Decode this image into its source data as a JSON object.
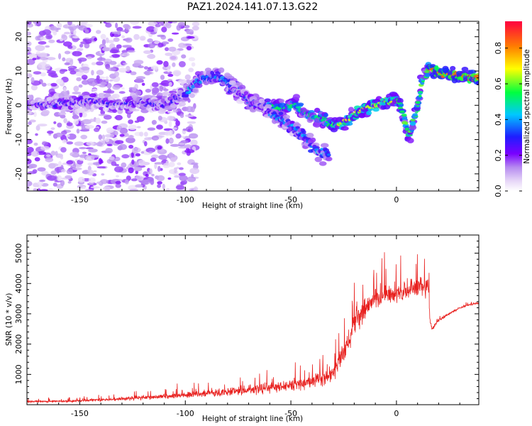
{
  "title": "PAZ1.2024.141.07.13.G22",
  "chart_data": [
    {
      "type": "heatmap",
      "xlabel": "Height of straight line (km)",
      "ylabel": "Frequency (Hz)",
      "xlim": [
        -175,
        39
      ],
      "ylim": [
        -25,
        24.5
      ],
      "xticks": [
        -150,
        -100,
        -50,
        0
      ],
      "yticks": [
        -20,
        -10,
        0,
        10,
        20
      ],
      "colorbar": {
        "label": "Normalized spectral amplitude",
        "range": [
          0,
          0.95
        ],
        "ticks": [
          0.0,
          0.2,
          0.4,
          0.6,
          0.8
        ],
        "colormap": [
          "#ffffff",
          "#e6d6f7",
          "#b68af0",
          "#7a00ff",
          "#1e1eff",
          "#00c8ff",
          "#00ff40",
          "#ffff00",
          "#ff7f00",
          "#ff0040"
        ]
      },
      "dominant_frequency_track": {
        "x": [
          -170,
          -150,
          -140,
          -130,
          -120,
          -110,
          -100,
          -92,
          -85,
          -80,
          -75,
          -70,
          -62,
          -55,
          -48,
          -42,
          -35,
          -30,
          -25,
          -20,
          -15,
          -10,
          -5,
          -2,
          0,
          2,
          4,
          6,
          8,
          10,
          12,
          15,
          18,
          22,
          28,
          34,
          39
        ],
        "y": [
          0,
          1,
          1,
          0,
          1,
          0,
          3,
          8,
          8,
          7,
          5,
          1,
          0,
          -1,
          0,
          -3,
          -4,
          -6,
          -5,
          -3,
          -1,
          0,
          1,
          1,
          2,
          0,
          -5,
          -9,
          -5,
          0,
          7,
          11,
          10,
          9,
          9,
          8,
          8
        ]
      },
      "secondary_track": {
        "x": [
          -80,
          -70,
          -60,
          -50,
          -45,
          -40,
          -35,
          -32
        ],
        "y": [
          5,
          2,
          -2,
          -6,
          -8,
          -12,
          -14,
          -15
        ]
      },
      "grid": false
    },
    {
      "type": "line",
      "xlabel": "Height of straight line (km)",
      "ylabel": "SNR (10 * v/v)",
      "xlim": [
        -175,
        39
      ],
      "ylim": [
        0,
        5600
      ],
      "xticks": [
        -150,
        -100,
        -50,
        0
      ],
      "yticks": [
        1000,
        2000,
        3000,
        4000,
        5000
      ],
      "line_color": "#e8201e",
      "series": [
        {
          "x": [
            -175,
            -160,
            -150,
            -140,
            -130,
            -120,
            -110,
            -100,
            -90,
            -80,
            -70,
            -60,
            -50,
            -40,
            -35,
            -30,
            -25,
            -20,
            -15,
            -10,
            -5,
            0,
            5,
            10,
            15,
            16,
            17,
            20,
            25,
            30,
            35,
            39
          ],
          "mean": [
            100,
            110,
            130,
            160,
            190,
            230,
            270,
            320,
            370,
            420,
            480,
            560,
            650,
            760,
            900,
            1000,
            1700,
            2700,
            3200,
            3500,
            3600,
            3700,
            3800,
            3900,
            3900,
            2700,
            2500,
            2800,
            3000,
            3200,
            3300,
            3350
          ],
          "spread": [
            80,
            90,
            100,
            120,
            150,
            180,
            200,
            230,
            270,
            320,
            380,
            420,
            480,
            550,
            600,
            650,
            900,
            1100,
            1000,
            1000,
            900,
            800,
            900,
            900,
            800,
            200,
            150,
            120,
            100,
            80,
            70,
            70
          ]
        }
      ],
      "grid": false
    }
  ]
}
